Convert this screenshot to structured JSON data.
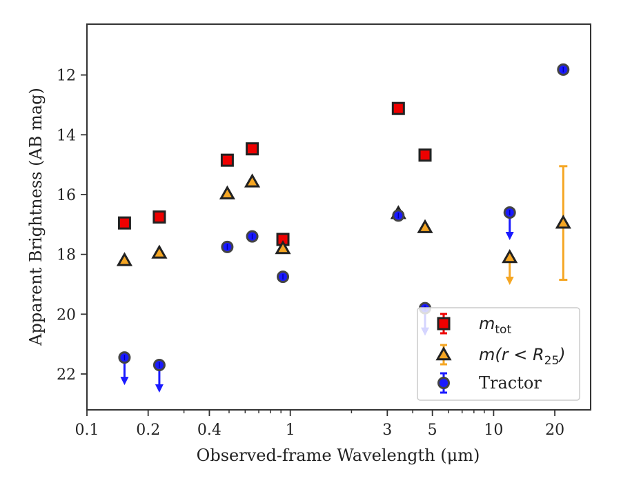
{
  "chart_data": {
    "type": "scatter",
    "xlabel": "Observed-frame Wavelength (μm)",
    "ylabel": "Apparent Brightness (AB mag)",
    "xscale": "log",
    "xlim": [
      0.1,
      30
    ],
    "ylim": [
      23.2,
      10.3
    ],
    "y_inverted": true,
    "x_ticks": [
      0.1,
      0.2,
      0.4,
      1,
      3,
      5,
      10,
      20
    ],
    "x_tick_labels": [
      "0.1",
      "0.2",
      "0.4",
      "1",
      "3",
      "5",
      "10",
      "20"
    ],
    "y_ticks": [
      12,
      14,
      16,
      18,
      20,
      22
    ],
    "y_tick_labels": [
      "12",
      "14",
      "16",
      "18",
      "20",
      "22"
    ],
    "legend_position": "lower-right",
    "series": [
      {
        "name": "m_tot",
        "label_main": "m",
        "label_sub": "tot",
        "marker": "square",
        "color": "#ee0000",
        "points": [
          {
            "x": 0.153,
            "y": 16.95
          },
          {
            "x": 0.227,
            "y": 16.75
          },
          {
            "x": 0.49,
            "y": 14.85
          },
          {
            "x": 0.65,
            "y": 14.47
          },
          {
            "x": 0.92,
            "y": 17.5
          },
          {
            "x": 3.4,
            "y": 13.12
          },
          {
            "x": 4.6,
            "y": 14.68
          }
        ]
      },
      {
        "name": "m(r < R_25)",
        "label_main": "m(r < R",
        "label_sub": "25",
        "label_close": ")",
        "marker": "triangle",
        "color": "#f5a623",
        "points": [
          {
            "x": 0.153,
            "y": 18.2
          },
          {
            "x": 0.227,
            "y": 17.95
          },
          {
            "x": 0.49,
            "y": 15.97
          },
          {
            "x": 0.65,
            "y": 15.57
          },
          {
            "x": 0.92,
            "y": 17.8
          },
          {
            "x": 3.4,
            "y": 16.63
          },
          {
            "x": 4.6,
            "y": 17.1
          },
          {
            "x": 12.0,
            "y": 18.1,
            "upper_limit": true
          },
          {
            "x": 22.0,
            "y": 16.95,
            "yerr": [
              15.05,
              18.85
            ]
          }
        ]
      },
      {
        "name": "Tractor",
        "label_main": "Tractor",
        "marker": "circle",
        "color": "#1a1aff",
        "points": [
          {
            "x": 0.153,
            "y": 21.45,
            "upper_limit": true
          },
          {
            "x": 0.227,
            "y": 21.7,
            "upper_limit": true
          },
          {
            "x": 0.49,
            "y": 17.75
          },
          {
            "x": 0.65,
            "y": 17.4
          },
          {
            "x": 0.92,
            "y": 18.75
          },
          {
            "x": 3.4,
            "y": 16.7
          },
          {
            "x": 4.6,
            "y": 19.8,
            "upper_limit": true
          },
          {
            "x": 12.0,
            "y": 16.6,
            "upper_limit": true
          },
          {
            "x": 22.0,
            "y": 11.82
          }
        ]
      }
    ]
  }
}
